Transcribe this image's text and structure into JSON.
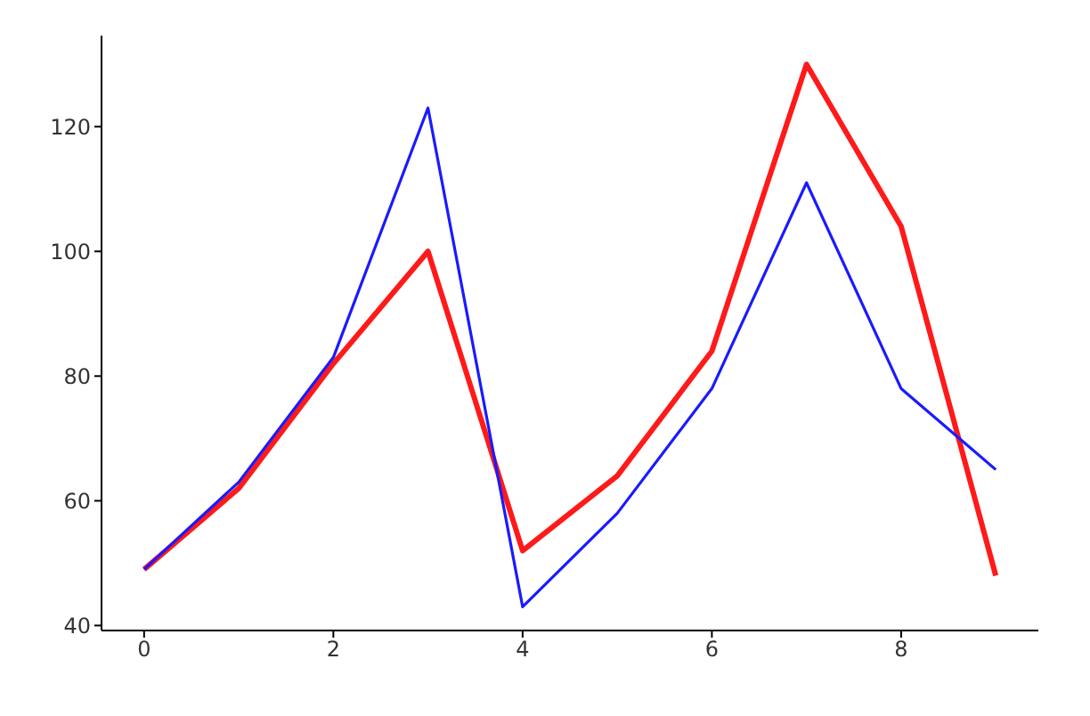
{
  "chart_data": {
    "type": "line",
    "x": [
      0,
      1,
      2,
      3,
      4,
      5,
      6,
      7,
      8,
      9
    ],
    "series": [
      {
        "color": "#ff1a1a",
        "values": [
          49,
          62,
          82,
          100,
          52,
          64,
          84,
          130,
          104,
          48
        ]
      },
      {
        "color": "#1a1aff",
        "values": [
          49,
          63,
          83,
          123,
          43,
          58,
          78,
          111,
          78,
          65
        ]
      }
    ],
    "xlim": [
      -0.45,
      9.45
    ],
    "xticks": [
      0,
      2,
      4,
      6,
      8
    ],
    "ylim": [
      39.2,
      134.6
    ],
    "yticks": [
      40,
      60,
      80,
      100,
      120
    ],
    "grid": false,
    "legend": false,
    "marker": "none",
    "line_style": "solid"
  }
}
